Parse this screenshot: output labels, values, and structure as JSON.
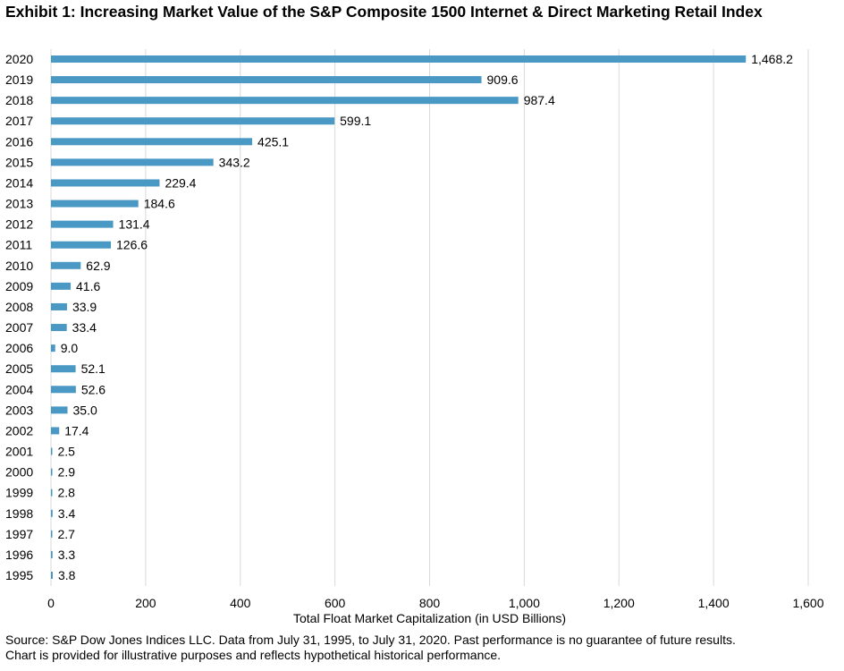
{
  "chart_data": {
    "type": "bar",
    "orientation": "horizontal",
    "title": "Exhibit 1: Increasing Market Value of the S&P Composite 1500 Internet & Direct Marketing Retail Index",
    "xlabel": "Total Float Market Capitalization (in USD Billions)",
    "ylabel": "",
    "categories": [
      "2020",
      "2019",
      "2018",
      "2017",
      "2016",
      "2015",
      "2014",
      "2013",
      "2012",
      "2011",
      "2010",
      "2009",
      "2008",
      "2007",
      "2006",
      "2005",
      "2004",
      "2003",
      "2002",
      "2001",
      "2000",
      "1999",
      "1998",
      "1997",
      "1996",
      "1995"
    ],
    "values": [
      1468.2,
      909.6,
      987.4,
      599.1,
      425.1,
      343.2,
      229.4,
      184.6,
      131.4,
      126.6,
      62.9,
      41.6,
      33.9,
      33.4,
      9.0,
      52.1,
      52.6,
      35.0,
      17.4,
      2.5,
      2.9,
      2.8,
      3.4,
      2.7,
      3.3,
      3.8
    ],
    "data_labels": [
      "1,468.2",
      "909.6",
      "987.4",
      "599.1",
      "425.1",
      "343.2",
      "229.4",
      "184.6",
      "131.4",
      "126.6",
      "62.9",
      "41.6",
      "33.9",
      "33.4",
      "9.0",
      "52.1",
      "52.6",
      "35.0",
      "17.4",
      "2.5",
      "2.9",
      "2.8",
      "3.4",
      "2.7",
      "3.3",
      "3.8"
    ],
    "xlim": [
      0,
      1600
    ],
    "xticks": [
      0,
      200,
      400,
      600,
      800,
      1000,
      1200,
      1400,
      1600
    ],
    "xtick_labels": [
      "0",
      "200",
      "400",
      "600",
      "800",
      "1,000",
      "1,200",
      "1,400",
      "1,600"
    ],
    "grid": "vertical",
    "legend": "none",
    "bar_color": "#4a98c4",
    "grid_color": "#d9d9d9"
  },
  "footer": {
    "source": "Source: S&P Dow Jones Indices LLC. Data from July 31, 1995, to July 31, 2020. Past performance is no guarantee of future results.",
    "note": "Chart is provided for illustrative purposes and reflects hypothetical historical performance."
  }
}
